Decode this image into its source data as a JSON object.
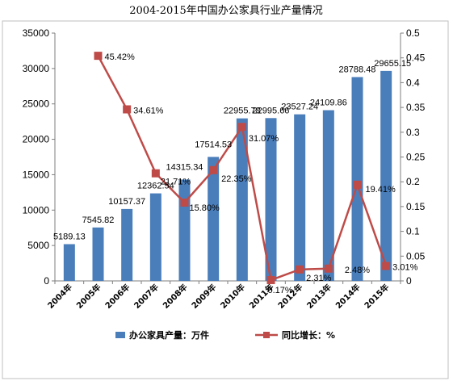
{
  "chart_data": {
    "type": "bar",
    "title": "2004-2015年中国办公家具行业产量情况",
    "categories": [
      "2004年",
      "2005年",
      "2006年",
      "2007年",
      "2008年",
      "2009年",
      "2010年",
      "2011年",
      "2012年",
      "2013年",
      "2014年",
      "2015年"
    ],
    "series": [
      {
        "name": "办公家具产量：万件",
        "type": "bar",
        "axis": "left",
        "color": "#4a7ebb",
        "values": [
          5189.13,
          7545.82,
          10157.37,
          12362.54,
          14315.34,
          17514.53,
          22955.78,
          22995.66,
          23527.24,
          24109.86,
          28788.48,
          29655.15
        ],
        "labels": [
          "5189.13",
          "7545.82",
          "10157.37",
          "12362.54",
          "14315.34",
          "17514.53",
          "22955.78",
          "22995.66",
          "23527.24",
          "24109.86",
          "28788.48",
          "29655.15"
        ]
      },
      {
        "name": "同比增长：%",
        "type": "line",
        "axis": "right",
        "color": "#be4b48",
        "values": [
          null,
          0.4542,
          0.3461,
          0.2171,
          0.158,
          0.2235,
          0.3107,
          0.0017,
          0.0231,
          0.0248,
          0.1941,
          0.0301
        ],
        "labels": [
          "",
          "45.42%",
          "34.61%",
          "21.71%",
          "15.80%",
          "22.35%",
          "31.07%",
          "0.17%",
          "2.31%",
          "2.48%",
          "19.41%",
          "3.01%"
        ]
      }
    ],
    "left_axis": {
      "ylim": [
        0,
        35000
      ],
      "ticks": [
        "0",
        "5000",
        "10000",
        "15000",
        "20000",
        "25000",
        "30000",
        "35000"
      ]
    },
    "right_axis": {
      "ylim": [
        0,
        0.5
      ],
      "ticks": [
        "0",
        "0.05",
        "0.1",
        "0.15",
        "0.2",
        "0.25",
        "0.3",
        "0.35",
        "0.4",
        "0.45",
        "0.5"
      ]
    },
    "grid": false,
    "legend_position": "bottom"
  }
}
